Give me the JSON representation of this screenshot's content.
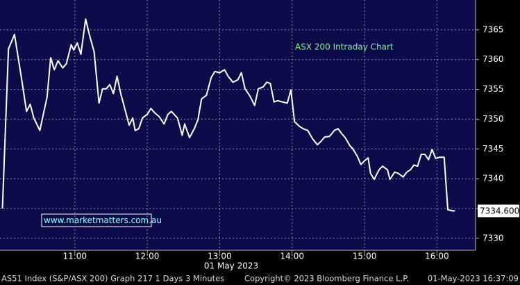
{
  "chart_data": {
    "type": "line",
    "title": "ASX 200 Intraday Chart",
    "annotation": "www.marketmatters.com.au",
    "date_label": "01 May 2023",
    "footer": [
      "AS51 Index (S&P/ASX 200) Graph 217 1 Days 3 Minutes",
      "Copyright© 2023 Bloomberg Finance L.P.",
      "01-May-2023 16:37:09"
    ],
    "x": [
      "10:00",
      "10:05",
      "10:10",
      "10:16",
      "10:20",
      "10:23",
      "10:26",
      "10:31",
      "10:37",
      "10:40",
      "10:43",
      "10:46",
      "10:50",
      "10:53",
      "10:57",
      "10:59",
      "11:02",
      "11:05",
      "11:09",
      "11:12",
      "11:16",
      "11:20",
      "11:23",
      "11:26",
      "11:29",
      "11:32",
      "11:35",
      "11:38",
      "11:42",
      "11:45",
      "11:48",
      "11:50",
      "11:53",
      "11:56",
      "12:00",
      "12:03",
      "12:06",
      "12:10",
      "12:14",
      "12:17",
      "12:20",
      "12:25",
      "12:29",
      "12:31",
      "12:35",
      "12:39",
      "12:42",
      "12:45",
      "12:49",
      "12:53",
      "12:56",
      "13:00",
      "13:04",
      "13:07",
      "13:11",
      "13:15",
      "13:18",
      "13:21",
      "13:25",
      "13:29",
      "13:32",
      "13:36",
      "13:39",
      "13:42",
      "13:45",
      "13:48",
      "13:52",
      "13:56",
      "13:59",
      "14:02",
      "14:06",
      "14:09",
      "14:13",
      "14:17",
      "14:21",
      "14:24",
      "14:27",
      "14:31",
      "14:35",
      "14:38",
      "14:41",
      "14:44",
      "14:48",
      "14:50",
      "14:54",
      "14:57",
      "15:00",
      "15:03",
      "15:05",
      "15:08",
      "15:12",
      "15:15",
      "15:19",
      "15:21",
      "15:25",
      "15:28",
      "15:32",
      "15:35",
      "15:38",
      "15:41",
      "15:44",
      "15:47",
      "15:50",
      "15:53",
      "15:56",
      "15:59",
      "16:02",
      "16:06",
      "16:09",
      "16:13",
      "16:15"
    ],
    "series": [
      {
        "name": "S&P/ASX 200",
        "color": "#ffffff",
        "values": [
          7335,
          7361.8,
          7364.2,
          7356.6,
          7351.3,
          7352.5,
          7350.2,
          7348.1,
          7353.7,
          7360.3,
          7358.3,
          7359.8,
          7358.6,
          7359.3,
          7362.5,
          7361.6,
          7362.8,
          7360.9,
          7366.8,
          7364.2,
          7361.3,
          7352.7,
          7355.1,
          7355.1,
          7355.8,
          7354.3,
          7357.2,
          7354.3,
          7351.3,
          7349.0,
          7350.2,
          7348.1,
          7348.4,
          7350.2,
          7350.8,
          7351.8,
          7351.1,
          7350.4,
          7349.2,
          7350.8,
          7351.3,
          7350.2,
          7347.3,
          7349.2,
          7346.9,
          7348.4,
          7349.9,
          7353.4,
          7354.0,
          7357.0,
          7358.0,
          7357.8,
          7358.3,
          7357.2,
          7356.2,
          7356.6,
          7357.8,
          7355.1,
          7353.9,
          7352.3,
          7355.1,
          7355.4,
          7356.2,
          7356.0,
          7352.9,
          7353.1,
          7352.9,
          7352.7,
          7354.9,
          7349.6,
          7348.8,
          7348.4,
          7348.1,
          7346.7,
          7345.7,
          7346.3,
          7347.0,
          7347.1,
          7348.1,
          7348.4,
          7347.6,
          7346.9,
          7345.5,
          7345.1,
          7343.8,
          7342.4,
          7343.0,
          7343.5,
          7340.9,
          7339.9,
          7341.5,
          7342.1,
          7341.5,
          7339.9,
          7341.1,
          7340.9,
          7340.3,
          7341.1,
          7341.5,
          7342.3,
          7342.1,
          7344.1,
          7344.1,
          7343.2,
          7344.9,
          7343.4,
          7343.6,
          7343.6,
          7334.8,
          7334.6,
          7334.6
        ]
      }
    ],
    "last_price": {
      "value": 7334.6,
      "label": "7334.600"
    },
    "xlim": [
      "09:58",
      "16:32"
    ],
    "xticks": [
      "11:00",
      "12:00",
      "13:00",
      "14:00",
      "15:00",
      "16:00"
    ],
    "ylim": [
      7328,
      7370
    ],
    "yticks": [
      7330,
      7335,
      7340,
      7345,
      7350,
      7355,
      7360,
      7365
    ],
    "grid": true
  }
}
